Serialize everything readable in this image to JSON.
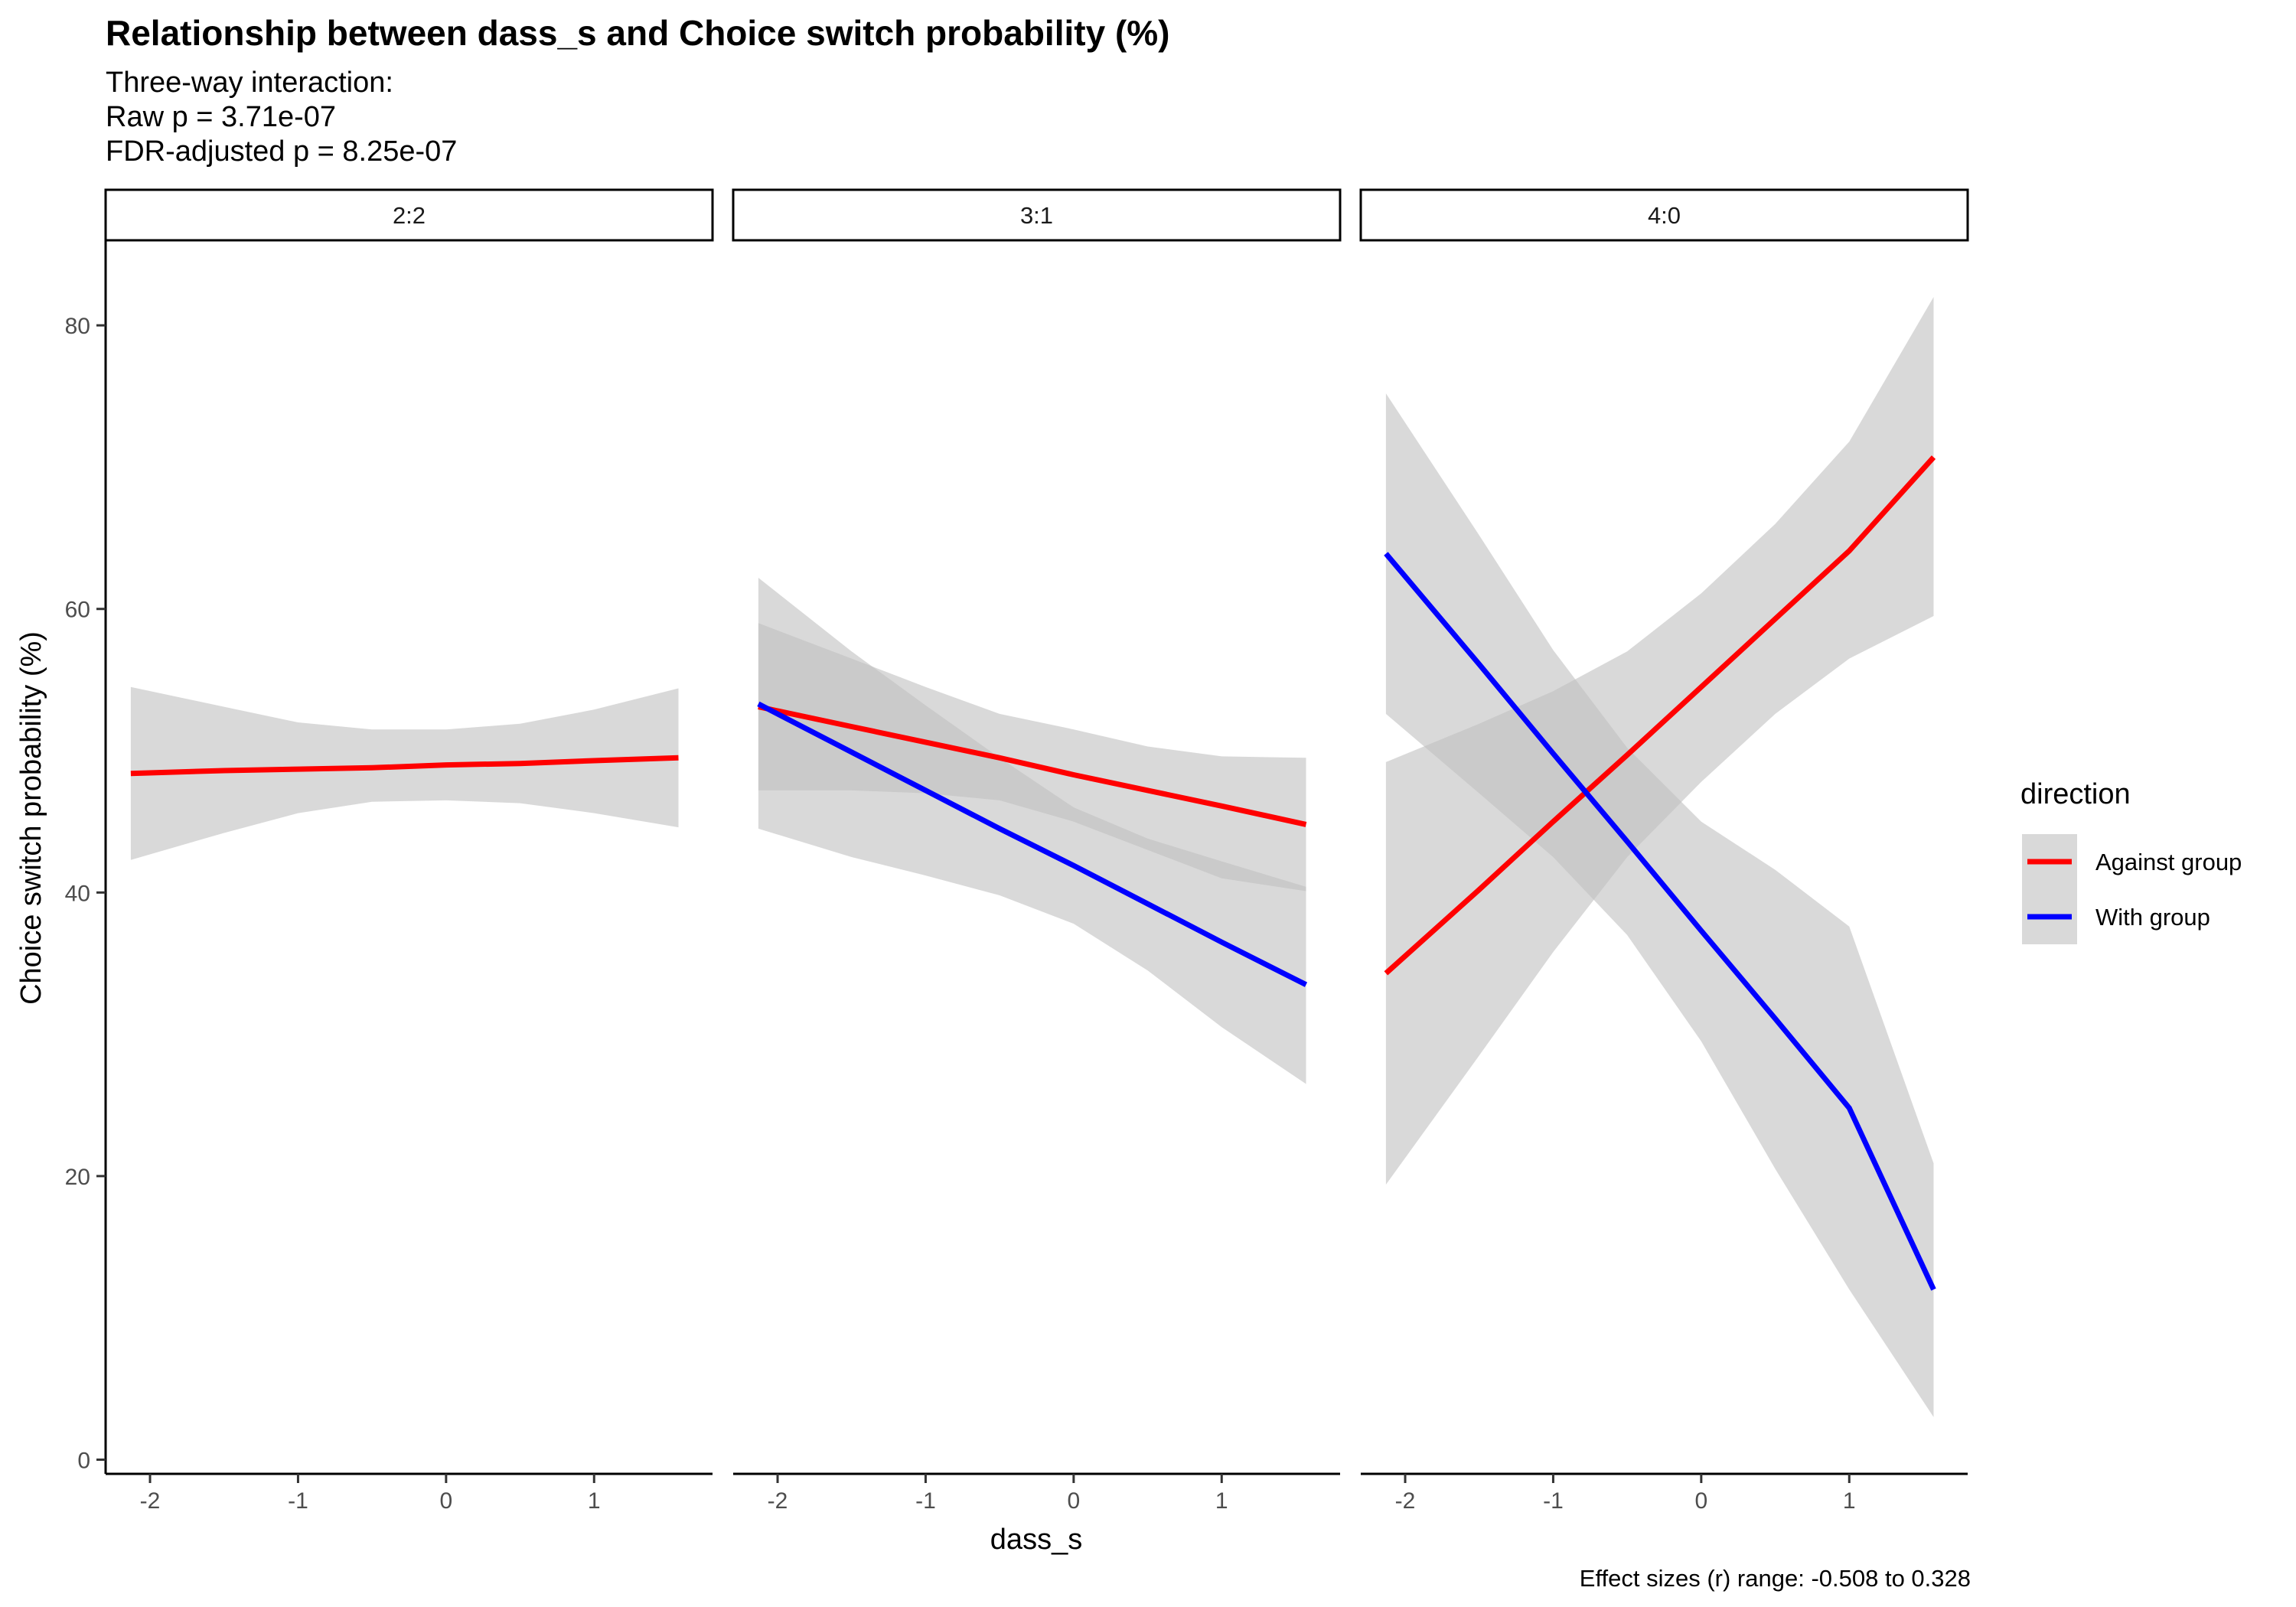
{
  "title": "Relationship between dass_s and Choice switch probability (%)",
  "subtitle": {
    "line1": "Three-way interaction:",
    "line2": "Raw p = 3.71e-07",
    "line3": "FDR-adjusted p = 8.25e-07"
  },
  "caption": "Effect sizes (r) range: -0.508 to 0.328",
  "colors": {
    "against": "#ff0000",
    "with": "#0000ff",
    "ribbon": "#bfbfbf"
  },
  "chart_data": {
    "type": "line",
    "xlabel": "dass_s",
    "ylabel": "Choice switch probability (%)",
    "xlim": [
      -2.3,
      1.8
    ],
    "ylim": [
      -1,
      86
    ],
    "xticks": [
      -2,
      -1,
      0,
      1
    ],
    "yticks": [
      0,
      20,
      40,
      60,
      80
    ],
    "legend": {
      "title": "direction",
      "position": "right",
      "entries": [
        "Against group",
        "With group"
      ]
    },
    "panels": [
      {
        "label": "2:2",
        "series": [
          {
            "name": "Against group",
            "x": [
              -2.13,
              -1.5,
              -1.0,
              -0.5,
              0.0,
              0.5,
              1.0,
              1.57
            ],
            "y": [
              48.4,
              48.6,
              48.7,
              48.8,
              49.0,
              49.1,
              49.3,
              49.5
            ],
            "lower": [
              42.3,
              44.2,
              45.6,
              46.4,
              46.5,
              46.3,
              45.6,
              44.6
            ],
            "upper": [
              54.5,
              53.1,
              52.0,
              51.5,
              51.5,
              51.9,
              52.9,
              54.4
            ]
          }
        ]
      },
      {
        "label": "3:1",
        "series": [
          {
            "name": "Against group",
            "x": [
              -2.13,
              -1.5,
              -1.0,
              -0.5,
              0.0,
              0.5,
              1.0,
              1.57
            ],
            "y": [
              53.1,
              51.7,
              50.6,
              49.5,
              48.3,
              47.2,
              46.1,
              44.8
            ],
            "lower": [
              47.2,
              47.2,
              47.0,
              46.5,
              45.0,
              43.0,
              41.0,
              40.1
            ],
            "upper": [
              59.0,
              56.5,
              54.5,
              52.6,
              51.5,
              50.3,
              49.6,
              49.5
            ]
          },
          {
            "name": "With group",
            "x": [
              -2.13,
              -1.5,
              -1.0,
              -0.5,
              0.0,
              0.5,
              1.0,
              1.57
            ],
            "y": [
              53.3,
              49.9,
              47.2,
              44.5,
              41.9,
              39.2,
              36.5,
              33.5
            ],
            "lower": [
              44.5,
              42.5,
              41.2,
              39.8,
              37.8,
              34.5,
              30.5,
              26.5
            ],
            "upper": [
              62.2,
              57.0,
              53.2,
              49.5,
              46.0,
              43.8,
              42.2,
              40.4
            ]
          }
        ]
      },
      {
        "label": "4:0",
        "series": [
          {
            "name": "Against group",
            "x": [
              -2.13,
              -1.5,
              -1.0,
              -0.5,
              0.0,
              0.5,
              1.0,
              1.57
            ],
            "y": [
              34.3,
              40.2,
              45.0,
              49.7,
              54.5,
              59.3,
              64.1,
              70.7
            ],
            "lower": [
              19.4,
              28.5,
              35.8,
              42.5,
              47.8,
              52.6,
              56.5,
              59.5
            ],
            "upper": [
              49.2,
              51.9,
              54.2,
              57.0,
              61.1,
              66.0,
              71.8,
              82.0
            ]
          },
          {
            "name": "With group",
            "x": [
              -2.13,
              -1.5,
              -1.0,
              -0.5,
              0.0,
              0.5,
              1.0,
              1.57
            ],
            "y": [
              63.9,
              56.1,
              49.8,
              43.6,
              37.3,
              31.1,
              24.8,
              12.0
            ],
            "lower": [
              52.6,
              47.0,
              42.5,
              37.0,
              29.5,
              20.5,
              12.0,
              3.0
            ],
            "upper": [
              75.2,
              65.2,
              57.1,
              50.2,
              45.0,
              41.6,
              37.6,
              20.9
            ]
          }
        ]
      }
    ]
  }
}
